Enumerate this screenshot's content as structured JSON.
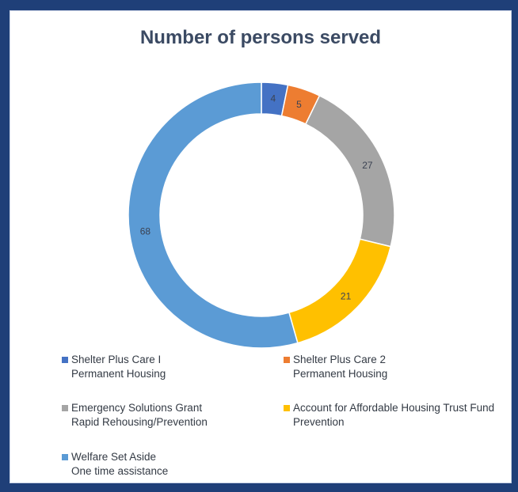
{
  "chart_data": {
    "type": "pie",
    "title": "Number of persons served",
    "categories": [
      "Shelter Plus Care I Permanent Housing",
      "Shelter Plus Care 2 Permanent Housing",
      "Emergency Solutions Grant Rapid Rehousing/Prevention",
      "Account for Affordable Housing Trust Fund Prevention",
      "Welfare Set Aside One time assistance"
    ],
    "values": [
      4,
      5,
      27,
      21,
      68
    ],
    "data_labels": [
      "4",
      "5",
      "27",
      "21",
      "68"
    ],
    "colors": [
      "#4472c4",
      "#ed7d31",
      "#a5a5a5",
      "#ffc000",
      "#5b9bd5"
    ],
    "legend": [
      {
        "line1": "Shelter Plus Care I",
        "line2": "Permanent Housing",
        "color": "#4472c4"
      },
      {
        "line1": "Shelter Plus Care 2",
        "line2": "Permanent Housing",
        "color": "#ed7d31"
      },
      {
        "line1": "Emergency Solutions Grant",
        "line2": "Rapid Rehousing/Prevention",
        "color": "#a5a5a5"
      },
      {
        "line1": "Account for Affordable Housing Trust Fund",
        "line2": "Prevention",
        "color": "#ffc000"
      },
      {
        "line1": "Welfare Set Aside",
        "line2": "One time assistance",
        "color": "#5b9bd5"
      }
    ],
    "legend_placement": "bottom",
    "donut": true
  }
}
